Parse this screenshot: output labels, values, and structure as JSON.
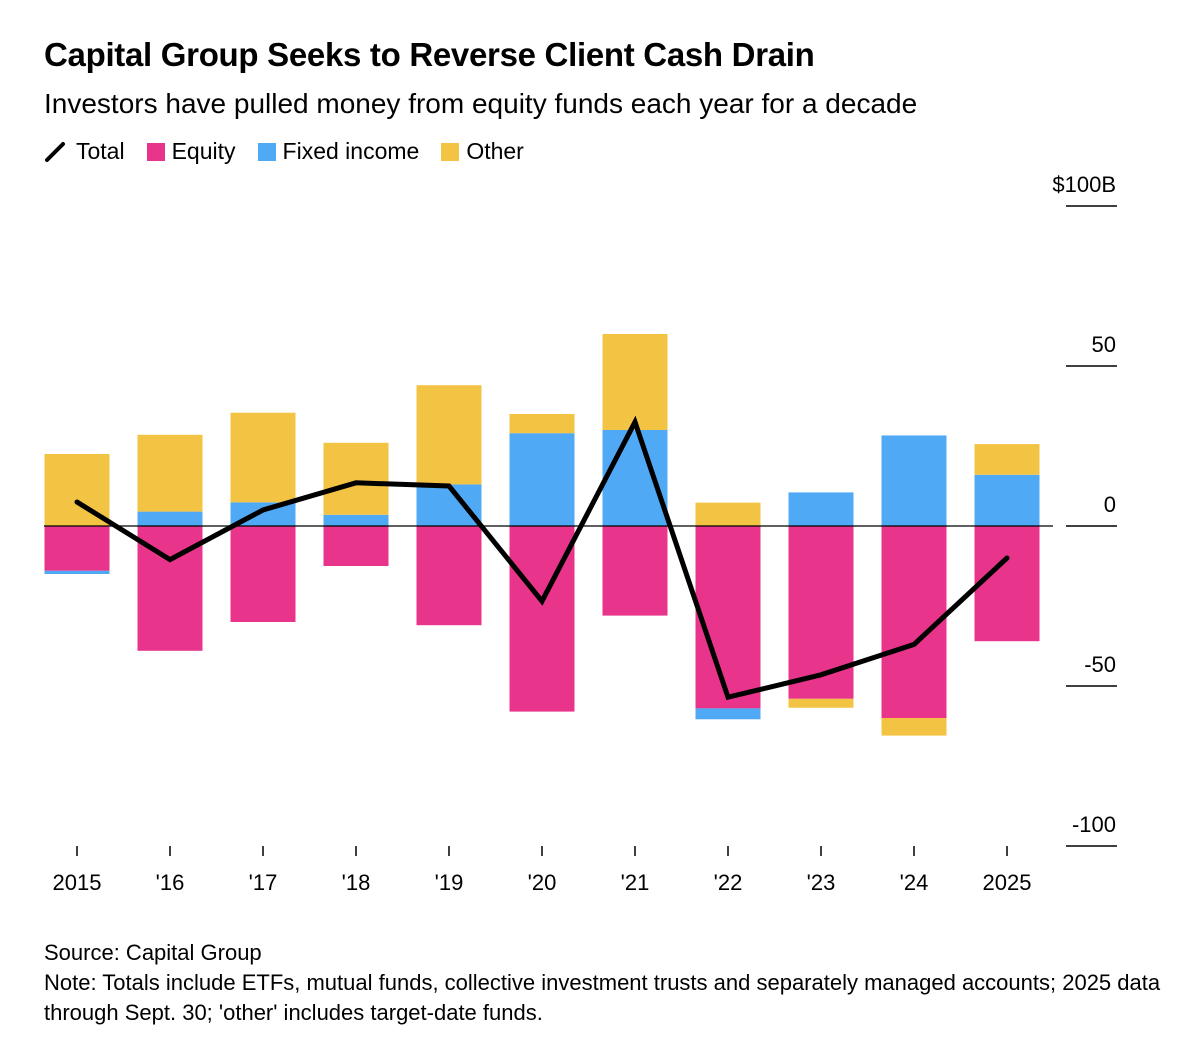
{
  "header": {
    "title": "Capital Group Seeks to Reverse Client Cash Drain",
    "subtitle": "Investors have pulled money from equity funds each year for a decade"
  },
  "legend": [
    {
      "label": "Total",
      "type": "line",
      "color": "#000000"
    },
    {
      "label": "Equity",
      "type": "box",
      "color": "#E8348A"
    },
    {
      "label": "Fixed income",
      "type": "box",
      "color": "#4FA9F5"
    },
    {
      "label": "Other",
      "type": "box",
      "color": "#F3C443"
    }
  ],
  "footer": {
    "source": "Source: Capital Group",
    "note": "Note: Totals include ETFs, mutual funds, collective investment trusts and separately managed accounts; 2025 data through Sept. 30; 'other' includes target-date funds."
  },
  "chart_data": {
    "type": "bar",
    "stacked": true,
    "title": "Capital Group Seeks to Reverse Client Cash Drain",
    "subtitle": "Investors have pulled money from equity funds each year for a decade",
    "xlabel": "",
    "ylabel": "$B",
    "ylim": [
      -100,
      100
    ],
    "yticks": [
      100,
      50,
      0,
      -50,
      -100
    ],
    "ytick_labels": [
      "$100B",
      "50",
      "0",
      "-50",
      "-100"
    ],
    "ytick_position": "right",
    "grid": false,
    "legend_position": "top-left",
    "categories": [
      "2015",
      "'16",
      "'17",
      "'18",
      "'19",
      "'20",
      "'21",
      "'22",
      "'23",
      "'24",
      "2025"
    ],
    "series": [
      {
        "name": "Equity",
        "type": "bar",
        "color": "#E8348A",
        "values": [
          -14,
          -39,
          -30,
          -12.5,
          -31,
          -58,
          -28,
          -57,
          -54,
          -60,
          -36
        ]
      },
      {
        "name": "Fixed income",
        "type": "bar",
        "color": "#4FA9F5",
        "values": [
          -1,
          4.5,
          7.4,
          3.5,
          13,
          29,
          30,
          -3.4,
          10.5,
          28.3,
          16
        ]
      },
      {
        "name": "Other",
        "type": "bar",
        "color": "#F3C443",
        "values": [
          22.5,
          24,
          28,
          22.5,
          31,
          6,
          30,
          7.3,
          -2.8,
          -5.5,
          9.6
        ]
      },
      {
        "name": "Total",
        "type": "line",
        "color": "#000000",
        "values": [
          7.5,
          -10.5,
          5,
          13.5,
          12.5,
          -23.5,
          32.5,
          -53.5,
          -46.5,
          -37,
          -10
        ]
      }
    ]
  }
}
